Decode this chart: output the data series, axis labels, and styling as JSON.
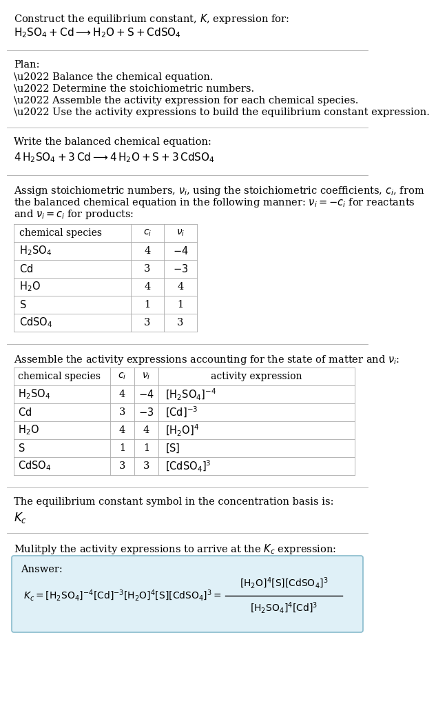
{
  "title_line1": "Construct the equilibrium constant, $K$, expression for:",
  "title_line2": "$\\mathrm{H_2SO_4 + Cd \\longrightarrow H_2O + S + CdSO_4}$",
  "plan_header": "Plan:",
  "plan_items": [
    "\\u2022 Balance the chemical equation.",
    "\\u2022 Determine the stoichiometric numbers.",
    "\\u2022 Assemble the activity expression for each chemical species.",
    "\\u2022 Use the activity expressions to build the equilibrium constant expression."
  ],
  "balanced_header": "Write the balanced chemical equation:",
  "balanced_eq": "$\\mathrm{4\\,H_2SO_4 + 3\\,Cd \\longrightarrow 4\\,H_2O + S + 3\\,CdSO_4}$",
  "stoich_intro_lines": [
    "Assign stoichiometric numbers, $\\nu_i$, using the stoichiometric coefficients, $c_i$, from",
    "the balanced chemical equation in the following manner: $\\nu_i = -c_i$ for reactants",
    "and $\\nu_i = c_i$ for products:"
  ],
  "table1_headers": [
    "chemical species",
    "$c_i$",
    "$\\nu_i$"
  ],
  "table1_rows": [
    [
      "$\\mathrm{H_2SO_4}$",
      "4",
      "$-4$"
    ],
    [
      "$\\mathrm{Cd}$",
      "3",
      "$-3$"
    ],
    [
      "$\\mathrm{H_2O}$",
      "4",
      "4"
    ],
    [
      "$\\mathrm{S}$",
      "1",
      "1"
    ],
    [
      "$\\mathrm{CdSO_4}$",
      "3",
      "3"
    ]
  ],
  "activity_intro": "Assemble the activity expressions accounting for the state of matter and $\\nu_i$:",
  "table2_headers": [
    "chemical species",
    "$c_i$",
    "$\\nu_i$",
    "activity expression"
  ],
  "table2_rows": [
    [
      "$\\mathrm{H_2SO_4}$",
      "4",
      "$-4$",
      "$[\\mathrm{H_2SO_4}]^{-4}$"
    ],
    [
      "$\\mathrm{Cd}$",
      "3",
      "$-3$",
      "$[\\mathrm{Cd}]^{-3}$"
    ],
    [
      "$\\mathrm{H_2O}$",
      "4",
      "4",
      "$[\\mathrm{H_2O}]^{4}$"
    ],
    [
      "$\\mathrm{S}$",
      "1",
      "1",
      "$[\\mathrm{S}]$"
    ],
    [
      "$\\mathrm{CdSO_4}$",
      "3",
      "3",
      "$[\\mathrm{CdSO_4}]^{3}$"
    ]
  ],
  "kc_intro": "The equilibrium constant symbol in the concentration basis is:",
  "kc_symbol": "$K_c$",
  "multiply_intro": "Mulitply the activity expressions to arrive at the $K_c$ expression:",
  "answer_label": "Answer:",
  "bg_color": "#ffffff",
  "answer_bg": "#dff0f7",
  "answer_border": "#88bbcc",
  "separator_color": "#aaaaaa",
  "table_line_color": "#aaaaaa",
  "text_color": "#000000",
  "font_size": 10.5
}
